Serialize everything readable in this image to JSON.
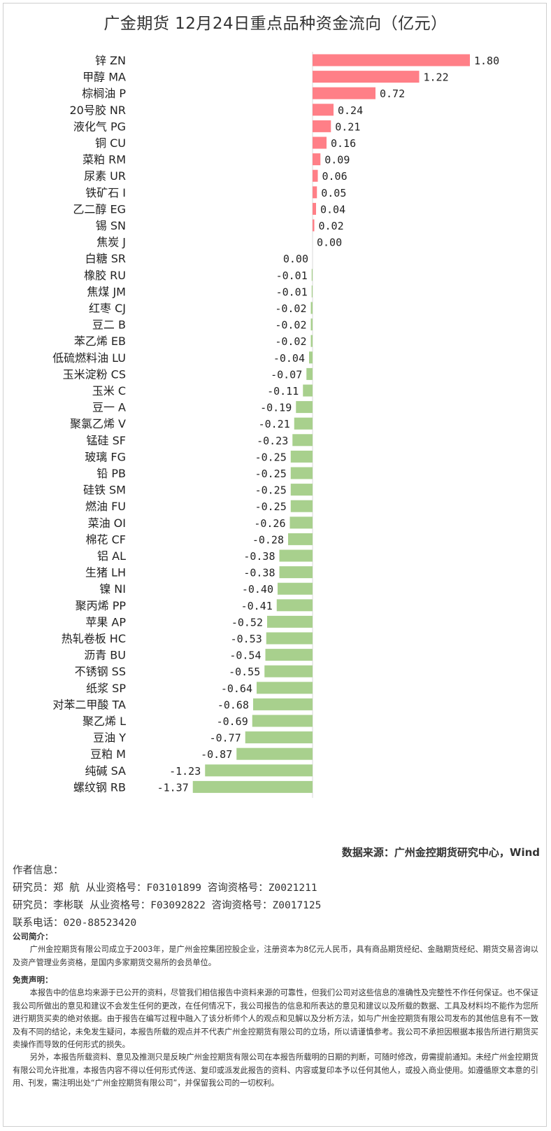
{
  "title": "广金期货 12月24日重点品种资金流向（亿元）",
  "chart_data": {
    "type": "bar",
    "orientation": "horizontal",
    "unit": "亿元",
    "positive_color": "#ff7f87",
    "negative_color": "#a8d08d",
    "categories": [
      "锌 ZN",
      "甲醇 MA",
      "棕榈油 P",
      "20号胶 NR",
      "液化气 PG",
      "铜 CU",
      "菜粕 RM",
      "尿素 UR",
      "铁矿石 I",
      "乙二醇 EG",
      "锡 SN",
      "焦炭 J",
      "白糖 SR",
      "橡胶 RU",
      "焦煤 JM",
      "红枣 CJ",
      "豆二 B",
      "苯乙烯 EB",
      "低硫燃料油 LU",
      "玉米淀粉 CS",
      "玉米 C",
      "豆一 A",
      "聚氯乙烯 V",
      "锰硅 SF",
      "玻璃 FG",
      "铅 PB",
      "硅铁 SM",
      "燃油 FU",
      "菜油 OI",
      "棉花 CF",
      "铝 AL",
      "生猪 LH",
      "镍 NI",
      "聚丙烯 PP",
      "苹果 AP",
      "热轧卷板 HC",
      "沥青 BU",
      "不锈钢 SS",
      "纸浆 SP",
      "对苯二甲酸 TA",
      "聚乙烯 L",
      "豆油 Y",
      "豆粕 M",
      "纯碱 SA",
      "螺纹钢 RB"
    ],
    "values": [
      1.8,
      1.22,
      0.72,
      0.24,
      0.21,
      0.16,
      0.09,
      0.06,
      0.05,
      0.04,
      0.02,
      0.0,
      0.0,
      -0.01,
      -0.01,
      -0.02,
      -0.02,
      -0.02,
      -0.04,
      -0.07,
      -0.11,
      -0.19,
      -0.21,
      -0.23,
      -0.25,
      -0.25,
      -0.25,
      -0.25,
      -0.26,
      -0.28,
      -0.38,
      -0.38,
      -0.4,
      -0.41,
      -0.52,
      -0.53,
      -0.54,
      -0.55,
      -0.64,
      -0.68,
      -0.69,
      -0.77,
      -0.87,
      -1.23,
      -1.37
    ],
    "value_labels": [
      "1.80",
      "1.22",
      "0.72",
      "0.24",
      "0.21",
      "0.16",
      "0.09",
      "0.06",
      "0.05",
      "0.04",
      "0.02",
      "0.00",
      "0.00",
      "-0.01",
      "-0.01",
      "-0.02",
      "-0.02",
      "-0.02",
      "-0.04",
      "-0.07",
      "-0.11",
      "-0.19",
      "-0.21",
      "-0.23",
      "-0.25",
      "-0.25",
      "-0.25",
      "-0.25",
      "-0.26",
      "-0.28",
      "-0.38",
      "-0.38",
      "-0.40",
      "-0.41",
      "-0.52",
      "-0.53",
      "-0.54",
      "-0.55",
      "-0.64",
      "-0.68",
      "-0.69",
      "-0.77",
      "-0.87",
      "-1.23",
      "-1.37"
    ]
  },
  "source": "数据来源：广州金控期货研究中心，Wind",
  "author": {
    "heading": "作者信息：",
    "lines": [
      "研究员：郑 航   从业资格号：F03101899  咨询资格号：Z0021211",
      "研究员：李彬联   从业资格号：F03092822  咨询资格号：Z0017125"
    ],
    "phone": "联系电话：020-88523420"
  },
  "company": {
    "heading": "公司简介：",
    "text": "广州金控期货有限公司成立于2003年，是广州金控集团控股企业，注册资本为8亿元人民币，具有商品期货经纪、金融期货经纪、期货交易咨询以及资产管理业务资格，是国内多家期货交易所的会员单位。"
  },
  "disclaimer": {
    "heading": "免责声明：",
    "p1": "本报告中的信息均来源于已公开的资料，尽管我们相信报告中资料来源的可靠性，但我们公司对这些信息的准确性及完整性不作任何保证。也不保证我公司所做出的意见和建议不会发生任何的更改，在任何情况下，我公司报告的信息和所表达的意见和建议以及所载的数据、工具及材料均不能作为您所进行期货买卖的绝对依据。由于报告在编写过程中融入了该分析师个人的观点和见解以及分析方法，如与广州金控期货有限公司发布的其他信息有不一致及有不同的结论，未免发生疑问，本报告所载的观点并不代表广州金控期货有限公司的立场，所以请谨慎参考。我公司不承担因根据本报告所进行期货买卖操作而导致的任何形式的损失。",
    "p2": "另外，本报告所载资料、意见及推测只是反映广州金控期货有限公司在本报告所载明的日期的判断，可随时修改，毋需提前通知。未经广州金控期货有限公司允许批准，本报告内容不得以任何形式传送、复印或派发此报告的资料、内容或复印本予以任何其他人，或投入商业使用。如遵循原文本意的引用、刊发，需注明出处“广州金控期货有限公司”，并保留我公司的一切权利。"
  }
}
